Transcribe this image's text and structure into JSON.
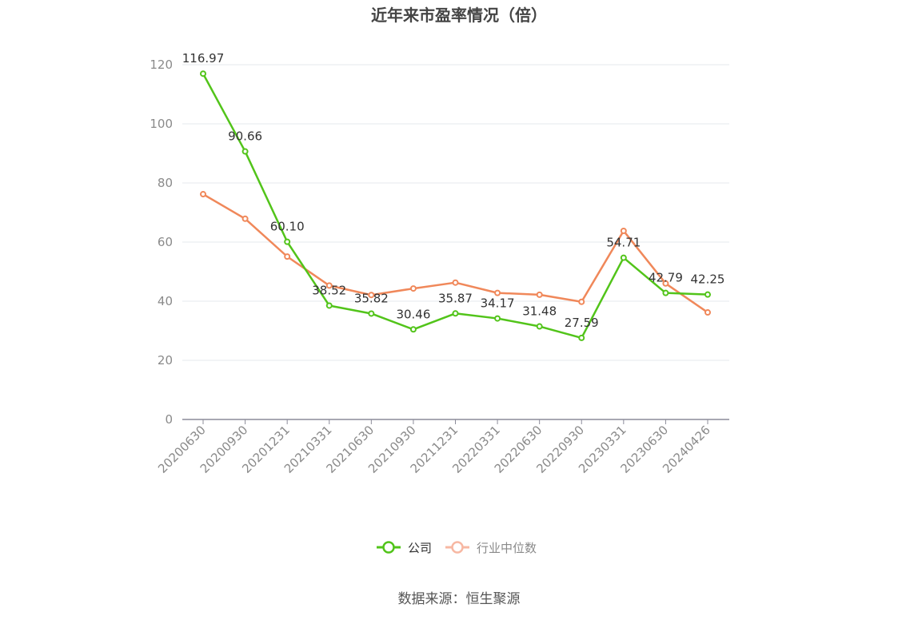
{
  "chart_data": {
    "type": "line",
    "title": "近年来市盈率情况（倍）",
    "categories": [
      "20200630",
      "20200930",
      "20201231",
      "20210331",
      "20210630",
      "20210930",
      "20211231",
      "20220331",
      "20220630",
      "20220930",
      "20230331",
      "20230630",
      "20240426"
    ],
    "ylim": [
      0,
      120
    ],
    "yticks": [
      0,
      20,
      40,
      60,
      80,
      100,
      120
    ],
    "grid": true,
    "legend_position": "bottom",
    "series": [
      {
        "name": "公司",
        "color": "#52c41a",
        "values": [
          116.97,
          90.66,
          60.1,
          38.52,
          35.82,
          30.46,
          35.87,
          34.17,
          31.48,
          27.59,
          54.71,
          42.79,
          42.25
        ],
        "labels": [
          "116.97",
          "90.66",
          "60.10",
          "38.52",
          "35.82",
          "30.46",
          "35.87",
          "34.17",
          "31.48",
          "27.59",
          "54.71",
          "42.79",
          "42.25"
        ]
      },
      {
        "name": "行业中位数",
        "color": "#f0885a",
        "values": [
          76.2,
          67.9,
          55.1,
          45.3,
          42.1,
          44.3,
          46.3,
          42.8,
          42.2,
          39.8,
          63.8,
          46.0,
          36.2
        ]
      }
    ]
  },
  "source": "数据来源：恒生聚源"
}
